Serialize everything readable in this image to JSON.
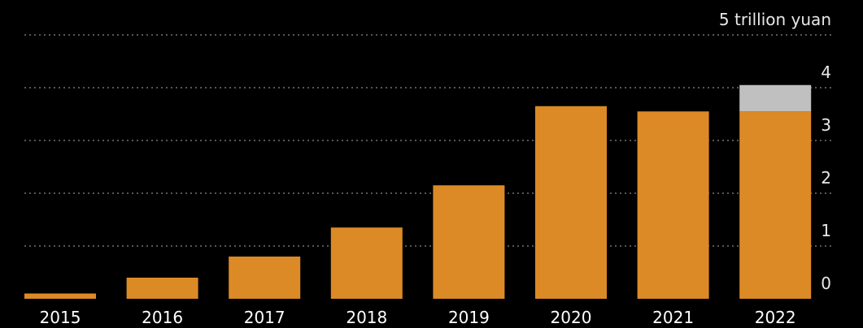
{
  "chart_data": {
    "type": "bar",
    "stacked": true,
    "categories": [
      "2015",
      "2016",
      "2017",
      "2018",
      "2019",
      "2020",
      "2021",
      "2022"
    ],
    "series": [
      {
        "values": [
          0.1,
          0.4,
          0.8,
          1.35,
          2.15,
          3.65,
          3.55,
          3.55
        ],
        "color": "#dc8a25"
      },
      {
        "values": [
          0,
          0,
          0,
          0,
          0,
          0,
          0,
          0.5
        ],
        "color": "#c0c0c0"
      }
    ],
    "y_ticks": [
      {
        "value": 0,
        "label": "0"
      },
      {
        "value": 1,
        "label": "1"
      },
      {
        "value": 2,
        "label": "2"
      },
      {
        "value": 3,
        "label": "3"
      },
      {
        "value": 4,
        "label": "4"
      },
      {
        "value": 5,
        "label": "5 trillion yuan"
      }
    ],
    "ylim": [
      0,
      5
    ],
    "grid": true,
    "y_axis_side": "right",
    "background": "#000000"
  }
}
